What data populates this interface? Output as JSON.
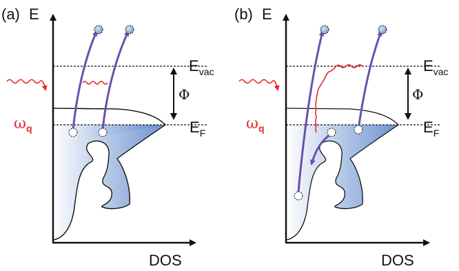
{
  "panels": [
    {
      "id": "a",
      "panel_label": "(a)",
      "energy_axis_label": "E",
      "dos_axis_label": "DOS",
      "vacuum_level_label": "E",
      "vacuum_level_sub": "vac",
      "fermi_level_label": "E",
      "fermi_level_sub": "F",
      "work_function_label": "Φ",
      "photon_label": "ω",
      "photon_sub": "q"
    },
    {
      "id": "b",
      "panel_label": "(b)",
      "energy_axis_label": "E",
      "dos_axis_label": "DOS",
      "vacuum_level_label": "E",
      "vacuum_level_sub": "vac",
      "fermi_level_label": "E",
      "fermi_level_sub": "F",
      "work_function_label": "Φ",
      "photon_label": "ω",
      "photon_sub": "q"
    }
  ],
  "colors": {
    "electron_arrow": "#6a4fb0",
    "photon_wave": "#e8262a",
    "dos_fill_light": "#ffffff",
    "dos_fill_dark": "#5b86c8",
    "electron_dot": "#8fb3e0",
    "axes": "#111111"
  }
}
